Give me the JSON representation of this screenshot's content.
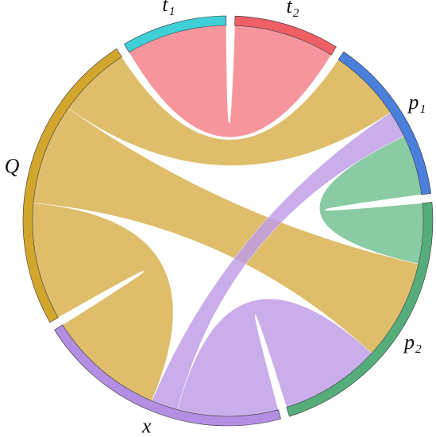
{
  "chart_data": {
    "type": "chord",
    "nodes": [
      {
        "name": "t₂",
        "color": "#ee5f66"
      },
      {
        "name": "p₁",
        "color": "#4a7fdc"
      },
      {
        "name": "p₂",
        "color": "#55ad7b"
      },
      {
        "name": "x",
        "color": "#b48ee2"
      },
      {
        "name": "Q",
        "color": "#d2a52c"
      },
      {
        "name": "t₁",
        "color": "#3fcfd6"
      }
    ],
    "links": [
      {
        "source": "t₁",
        "target": "t₂",
        "value": 30,
        "color": "#f47f86"
      },
      {
        "source": "Q",
        "target": "p₁",
        "value": 22,
        "color": "#d8b04a"
      },
      {
        "source": "Q",
        "target": "p₂",
        "value": 30,
        "color": "#d8b04a"
      },
      {
        "source": "Q",
        "target": "x",
        "value": 35,
        "color": "#d8b04a"
      },
      {
        "source": "p₁",
        "target": "p₂",
        "value": 18,
        "color": "#6fc08f"
      },
      {
        "source": "x",
        "target": "p₁",
        "value": 8,
        "color": "#be9be6"
      },
      {
        "source": "x",
        "target": "p₂",
        "value": 30,
        "color": "#be9be6"
      }
    ]
  }
}
